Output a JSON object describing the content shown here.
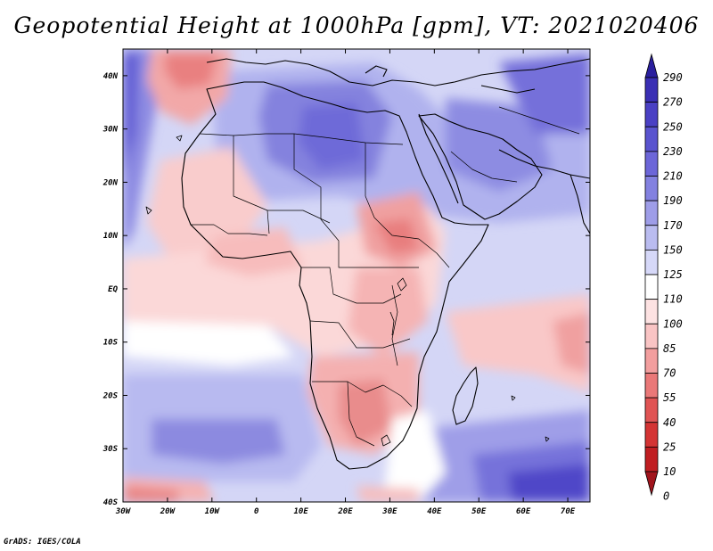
{
  "title": "Geopotential Height at 1000hPa [gpm], VT: 2021020406",
  "credit": "GrADS: IGES/COLA",
  "map": {
    "lon_labels": [
      "30W",
      "20W",
      "10W",
      "0",
      "10E",
      "20E",
      "30E",
      "40E",
      "50E",
      "60E",
      "70E"
    ],
    "lat_labels": [
      "40N",
      "30N",
      "20N",
      "10N",
      "EQ",
      "10S",
      "20S",
      "30S",
      "40S"
    ],
    "lon_range": [
      -30,
      75
    ],
    "lat_range": [
      -40,
      45
    ]
  },
  "colorbar": {
    "labels": [
      "290",
      "270",
      "250",
      "230",
      "210",
      "190",
      "170",
      "150",
      "125",
      "110",
      "100",
      "85",
      "70",
      "55",
      "40",
      "25",
      "10",
      "0"
    ],
    "colors": [
      "#2a1f9e",
      "#3a2fb4",
      "#4a40c4",
      "#5a54cf",
      "#6c66d8",
      "#8381e0",
      "#9e9de8",
      "#babcf0",
      "#d6d8f8",
      "#ffffff",
      "#fde2e2",
      "#f9c4c4",
      "#f29e9e",
      "#ea7878",
      "#e05454",
      "#d43434",
      "#c01e22",
      "#a0141c"
    ]
  }
}
